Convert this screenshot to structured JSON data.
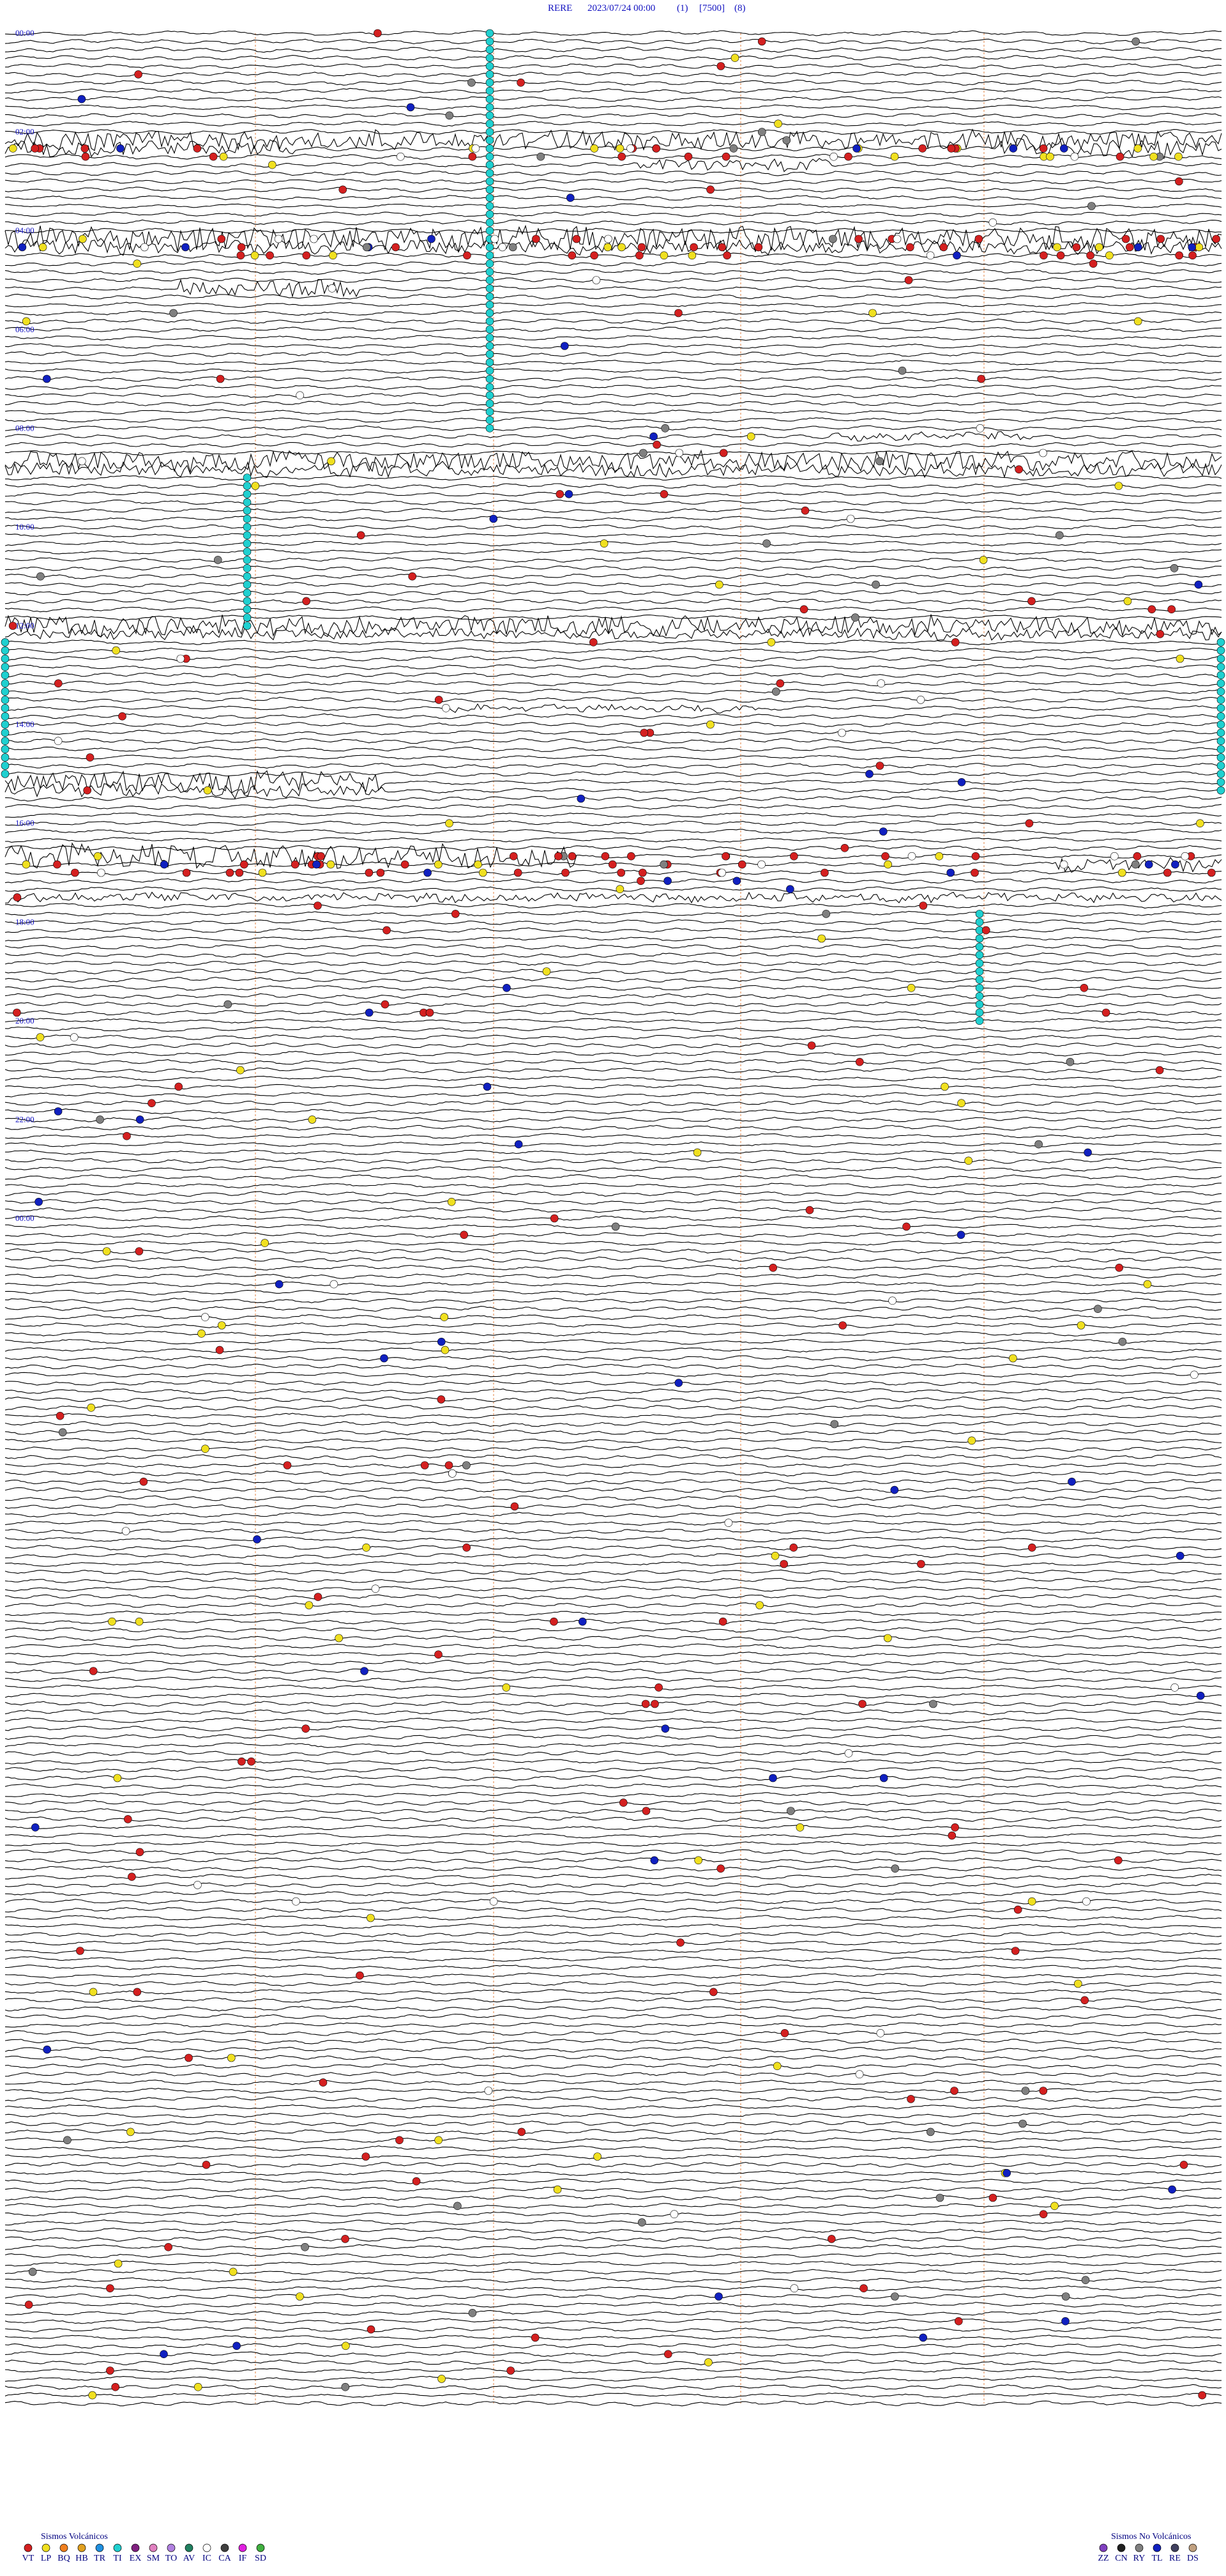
{
  "header": {
    "station": "RERE",
    "datetime": "2023/07/24 00:00",
    "channel": "(1)",
    "scale": "[7500]",
    "filter": "(8)"
  },
  "time_labels": [
    "00:00",
    "02:00",
    "04:00",
    "06:00",
    "08:00",
    "10:00",
    "12:00",
    "14:00",
    "16:00",
    "18:00",
    "20:00",
    "22:00",
    "00:00"
  ],
  "legend": {
    "volcanic": {
      "title": "Sismos Volcánicos",
      "items": [
        {
          "code": "VT",
          "color": "#d42020"
        },
        {
          "code": "LP",
          "color": "#f0e020"
        },
        {
          "code": "BQ",
          "color": "#f08020"
        },
        {
          "code": "HB",
          "color": "#e0a020"
        },
        {
          "code": "TR",
          "color": "#2090e0"
        },
        {
          "code": "TI",
          "color": "#20d0d0"
        },
        {
          "code": "EX",
          "color": "#802080"
        },
        {
          "code": "SM",
          "color": "#e080c0"
        },
        {
          "code": "TO",
          "color": "#b080e0"
        },
        {
          "code": "AV",
          "color": "#208060"
        },
        {
          "code": "IC",
          "color": "#ffffff"
        },
        {
          "code": "CA",
          "color": "#404040"
        },
        {
          "code": "IF",
          "color": "#e020e0"
        },
        {
          "code": "SD",
          "color": "#40b040"
        }
      ]
    },
    "non_volcanic": {
      "title": "Sismos No Volcánicos",
      "items": [
        {
          "code": "ZZ",
          "color": "#8040c0"
        },
        {
          "code": "CN",
          "color": "#202020"
        },
        {
          "code": "RY",
          "color": "#808080"
        },
        {
          "code": "TL",
          "color": "#1020c0"
        },
        {
          "code": "RE",
          "color": "#404060"
        },
        {
          "code": "DS",
          "color": "#c0a080"
        }
      ]
    }
  }
}
